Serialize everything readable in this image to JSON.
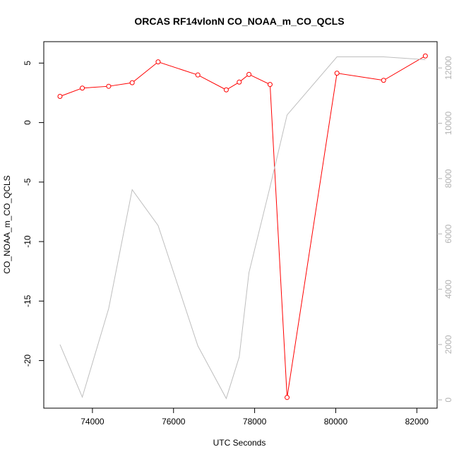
{
  "chart_data": {
    "type": "line",
    "title": "ORCAS RF14vlonN CO_NOAA_m_CO_QCLS",
    "xlabel": "UTC Seconds",
    "ylabel": "CO_NOAA_m_CO_QCLS",
    "xlim": [
      72800,
      82500
    ],
    "ylim": [
      -24,
      6.8
    ],
    "y2lim": [
      -300,
      12950
    ],
    "x_ticks": [
      74000,
      76000,
      78000,
      80000,
      82000
    ],
    "y_ticks": [
      5,
      0,
      -5,
      -10,
      -15,
      -20
    ],
    "y2_ticks": [
      0,
      2000,
      4000,
      6000,
      8000,
      10000,
      12000
    ],
    "colors": {
      "primary": "#ff0000",
      "secondary": "#bebebe",
      "secondary_ticks": "#b3b3b3"
    },
    "series": [
      {
        "axis": "left",
        "style": "line+points",
        "color": "#ff0000",
        "x": [
          73200,
          73750,
          74400,
          74980,
          75620,
          76600,
          77300,
          77620,
          77860,
          78380,
          78800,
          80030,
          81180,
          82210
        ],
        "y": [
          2.2,
          2.9,
          3.05,
          3.35,
          5.1,
          4.0,
          2.75,
          3.4,
          4.05,
          3.2,
          -23.1,
          4.15,
          3.55,
          5.6
        ]
      },
      {
        "axis": "right",
        "style": "line",
        "color": "#bebebe",
        "x": [
          73200,
          73750,
          74400,
          74980,
          75620,
          76600,
          77300,
          77620,
          77860,
          78380,
          78800,
          80030,
          81180,
          82210
        ],
        "y": [
          2000,
          100,
          3300,
          7600,
          6300,
          1950,
          50,
          1550,
          4600,
          7700,
          10300,
          12400,
          12400,
          12300
        ]
      }
    ]
  }
}
